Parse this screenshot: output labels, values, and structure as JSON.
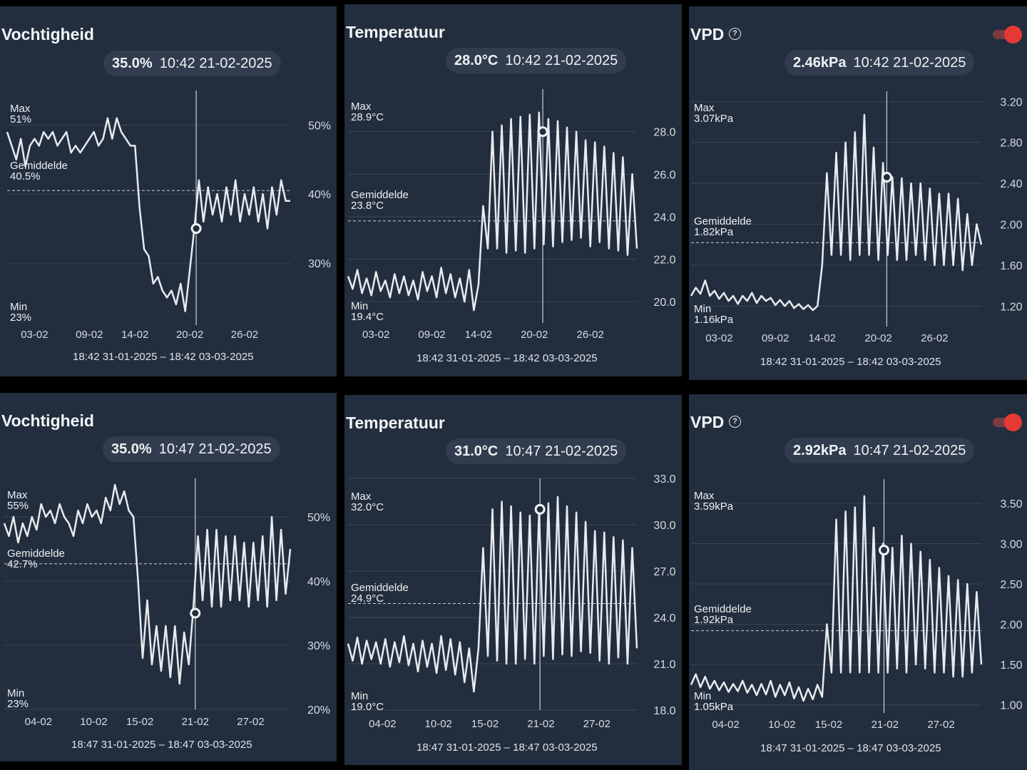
{
  "panels": [
    {
      "title": "Vochtigheid",
      "pill_value": "35.0%",
      "pill_time": "10:42 21-02-2025",
      "range_text": "18:42 31-01-2025 – 18:42 03-03-2025",
      "max_label": "Max",
      "max_value": "51%",
      "avg_label": "Gemiddelde",
      "avg_value": "40.5%",
      "min_label": "Min",
      "min_value": "23%"
    },
    {
      "title": "Temperatuur",
      "pill_value": "28.0°C",
      "pill_time": "10:42 21-02-2025",
      "range_text": "18:42 31-01-2025 – 18:42 03-03-2025",
      "max_label": "Max",
      "max_value": "28.9°C",
      "avg_label": "Gemiddelde",
      "avg_value": "23.8°C",
      "min_label": "Min",
      "min_value": "19.4°C"
    },
    {
      "title": "VPD",
      "help_icon": "help-circle-icon",
      "toggle_on": true,
      "pill_value": "2.46kPa",
      "pill_time": "10:42 21-02-2025",
      "range_text": "18:42 31-01-2025 – 18:42 03-03-2025",
      "max_label": "Max",
      "max_value": "3.07kPa",
      "avg_label": "Gemiddelde",
      "avg_value": "1.82kPa",
      "min_label": "Min",
      "min_value": "1.16kPa"
    },
    {
      "title": "Vochtigheid",
      "pill_value": "35.0%",
      "pill_time": "10:47 21-02-2025",
      "range_text": "18:47 31-01-2025 – 18:47 03-03-2025",
      "max_label": "Max",
      "max_value": "55%",
      "avg_label": "Gemiddelde",
      "avg_value": "42.7%",
      "min_label": "Min",
      "min_value": "23%"
    },
    {
      "title": "Temperatuur",
      "pill_value": "31.0°C",
      "pill_time": "10:47 21-02-2025",
      "range_text": "18:47 31-01-2025 – 18:47 03-03-2025",
      "max_label": "Max",
      "max_value": "32.0°C",
      "avg_label": "Gemiddelde",
      "avg_value": "24.9°C",
      "min_label": "Min",
      "min_value": "19.0°C"
    },
    {
      "title": "VPD",
      "help_icon": "help-circle-icon",
      "toggle_on": true,
      "pill_value": "2.92kPa",
      "pill_time": "10:47 21-02-2025",
      "range_text": "18:47 31-01-2025 – 18:47 03-03-2025",
      "max_label": "Max",
      "max_value": "3.59kPa",
      "avg_label": "Gemiddelde",
      "avg_value": "1.92kPa",
      "min_label": "Min",
      "min_value": "1.05kPa"
    }
  ],
  "colors": {
    "panel_bg": "#222e3e",
    "line": "#e8eaee",
    "grid": "#3a4656",
    "toggle_knob": "#e53935",
    "pill_bg": "#313d4e"
  },
  "chart_data": [
    {
      "type": "line",
      "title": "Vochtigheid",
      "unit": "%",
      "x_ticks": [
        "03-02",
        "09-02",
        "14-02",
        "20-02",
        "26-02"
      ],
      "x_tick_days": [
        3,
        9,
        14,
        20,
        26
      ],
      "y_ticks": [
        "50%",
        "40%",
        "30%"
      ],
      "y_tick_values": [
        50,
        40,
        30
      ],
      "ylim": [
        21,
        55
      ],
      "xlim_days": [
        0,
        31
      ],
      "average": 40.5,
      "cursor_day": 20.7,
      "cursor_value": 35.0,
      "series": [
        {
          "x_days": [
            0,
            0.5,
            1,
            1.5,
            2,
            2.5,
            3,
            3.5,
            4,
            4.5,
            5,
            5.5,
            6,
            6.5,
            7,
            7.5,
            8,
            8.5,
            9,
            9.5,
            10,
            10.5,
            11,
            11.5,
            12,
            12.5,
            13,
            13.5,
            14,
            14.5,
            15,
            15.5,
            16,
            16.5,
            17,
            17.5,
            18,
            18.5,
            19,
            19.5,
            20,
            20.5,
            21,
            21.5,
            22,
            22.5,
            23,
            23.5,
            24,
            24.5,
            25,
            25.5,
            26,
            26.5,
            27,
            27.5,
            28,
            28.5,
            29,
            29.5,
            30,
            30.5,
            31
          ],
          "values": [
            49,
            47,
            45,
            48,
            44,
            47,
            48,
            47,
            49,
            48,
            49,
            47,
            48,
            49,
            46,
            47,
            46,
            47,
            48,
            49,
            47,
            48,
            51,
            48,
            51,
            49,
            48,
            47,
            47,
            38,
            32,
            31,
            27,
            28,
            26,
            25,
            26,
            24,
            27,
            23,
            29,
            35,
            42,
            36,
            41,
            37,
            40,
            36,
            41,
            37,
            42,
            36,
            40,
            37,
            41,
            36,
            40,
            35,
            41,
            37,
            42,
            39,
            39
          ]
        }
      ]
    },
    {
      "type": "line",
      "title": "Temperatuur",
      "unit": "°C",
      "x_ticks": [
        "03-02",
        "09-02",
        "14-02",
        "20-02",
        "26-02"
      ],
      "x_tick_days": [
        3,
        9,
        14,
        20,
        26
      ],
      "y_ticks": [
        "28.0",
        "26.0",
        "24.0",
        "22.0",
        "20.0"
      ],
      "y_tick_values": [
        28,
        26,
        24,
        22,
        20
      ],
      "ylim": [
        19,
        30
      ],
      "xlim_days": [
        0,
        31
      ],
      "average": 23.8,
      "cursor_day": 20.9,
      "cursor_value": 28.0,
      "series": [
        {
          "x_days": [
            0,
            0.5,
            1,
            1.5,
            2,
            2.5,
            3,
            3.5,
            4,
            4.5,
            5,
            5.5,
            6,
            6.5,
            7,
            7.5,
            8,
            8.5,
            9,
            9.5,
            10,
            10.5,
            11,
            11.5,
            12,
            12.5,
            13,
            13.5,
            14,
            14.5,
            15,
            15.5,
            16,
            16.5,
            17,
            17.5,
            18,
            18.5,
            19,
            19.5,
            20,
            20.5,
            21,
            21.5,
            22,
            22.5,
            23,
            23.5,
            24,
            24.5,
            25,
            25.5,
            26,
            26.5,
            27,
            27.5,
            28,
            28.5,
            29,
            29.5,
            30,
            30.5,
            31
          ],
          "values": [
            21.2,
            20.6,
            21.5,
            20.4,
            21.1,
            20.3,
            21.4,
            20.5,
            21.0,
            20.2,
            21.3,
            20.4,
            21.2,
            20.3,
            21.0,
            20.1,
            21.4,
            20.5,
            21.2,
            20.2,
            21.6,
            20.4,
            21.3,
            20.2,
            21.1,
            20.0,
            21.5,
            19.6,
            20.8,
            24.5,
            22.5,
            28.0,
            22.5,
            28.3,
            22.3,
            28.6,
            22.4,
            28.7,
            22.3,
            28.8,
            22.5,
            28.9,
            22.7,
            28.6,
            22.6,
            28.5,
            22.8,
            28.2,
            22.9,
            28.0,
            23.0,
            27.6,
            22.6,
            27.5,
            22.8,
            27.3,
            22.5,
            27.0,
            22.4,
            26.8,
            22.2,
            26.0,
            22.5
          ]
        }
      ]
    },
    {
      "type": "line",
      "title": "VPD",
      "unit": "kPa",
      "x_ticks": [
        "03-02",
        "09-02",
        "14-02",
        "20-02",
        "26-02"
      ],
      "x_tick_days": [
        3,
        9,
        14,
        20,
        26
      ],
      "y_ticks": [
        "3.20",
        "2.80",
        "2.40",
        "2.00",
        "1.60",
        "1.20"
      ],
      "y_tick_values": [
        3.2,
        2.8,
        2.4,
        2.0,
        1.6,
        1.2
      ],
      "ylim": [
        1.0,
        3.3
      ],
      "xlim_days": [
        0,
        31
      ],
      "average": 1.82,
      "cursor_day": 20.9,
      "cursor_value": 2.46,
      "series": [
        {
          "x_days": [
            0,
            0.5,
            1,
            1.5,
            2,
            2.5,
            3,
            3.5,
            4,
            4.5,
            5,
            5.5,
            6,
            6.5,
            7,
            7.5,
            8,
            8.5,
            9,
            9.5,
            10,
            10.5,
            11,
            11.5,
            12,
            12.5,
            13,
            13.5,
            14,
            14.5,
            15,
            15.5,
            16,
            16.5,
            17,
            17.5,
            18,
            18.5,
            19,
            19.5,
            20,
            20.5,
            21,
            21.5,
            22,
            22.5,
            23,
            23.5,
            24,
            24.5,
            25,
            25.5,
            26,
            26.5,
            27,
            27.5,
            28,
            28.5,
            29,
            29.5,
            30,
            30.5,
            31
          ],
          "values": [
            1.3,
            1.38,
            1.32,
            1.45,
            1.3,
            1.35,
            1.27,
            1.33,
            1.25,
            1.3,
            1.22,
            1.3,
            1.25,
            1.33,
            1.23,
            1.3,
            1.25,
            1.28,
            1.21,
            1.26,
            1.2,
            1.25,
            1.18,
            1.22,
            1.17,
            1.21,
            1.16,
            1.2,
            1.6,
            2.5,
            1.7,
            2.7,
            1.7,
            2.8,
            1.65,
            2.9,
            1.7,
            3.07,
            1.7,
            2.75,
            1.65,
            2.6,
            1.7,
            2.46,
            1.65,
            2.45,
            1.65,
            2.4,
            1.7,
            2.4,
            1.65,
            2.35,
            1.6,
            2.3,
            1.6,
            2.3,
            1.6,
            2.25,
            1.55,
            2.1,
            1.6,
            2.0,
            1.8
          ]
        }
      ]
    },
    {
      "type": "line",
      "title": "Vochtigheid",
      "unit": "%",
      "x_ticks": [
        "04-02",
        "10-02",
        "15-02",
        "21-02",
        "27-02"
      ],
      "x_tick_days": [
        4,
        10,
        15,
        21,
        27
      ],
      "y_ticks": [
        "50%",
        "40%",
        "30%",
        "20%"
      ],
      "y_tick_values": [
        50,
        40,
        30,
        20
      ],
      "ylim": [
        20,
        56
      ],
      "xlim_days": [
        0.3,
        31.3
      ],
      "average": 42.7,
      "cursor_day": 21.0,
      "cursor_value": 35.0,
      "series": [
        {
          "x_days": [
            0.3,
            0.8,
            1.3,
            1.8,
            2.3,
            2.8,
            3.3,
            3.8,
            4.3,
            4.8,
            5.3,
            5.8,
            6.3,
            6.8,
            7.3,
            7.8,
            8.3,
            8.8,
            9.3,
            9.8,
            10.3,
            10.8,
            11.3,
            11.8,
            12.3,
            12.8,
            13.3,
            13.8,
            14.3,
            14.8,
            15.3,
            15.8,
            16.3,
            16.8,
            17.3,
            17.8,
            18.3,
            18.8,
            19.3,
            19.8,
            20.3,
            20.8,
            21.3,
            21.8,
            22.3,
            22.8,
            23.3,
            23.8,
            24.3,
            24.8,
            25.3,
            25.8,
            26.3,
            26.8,
            27.3,
            27.8,
            28.3,
            28.8,
            29.3,
            29.8,
            30.3,
            30.8,
            31.3
          ],
          "values": [
            49,
            47,
            50,
            46,
            49,
            47,
            50,
            48,
            52,
            50,
            51,
            49,
            52,
            50,
            49,
            47,
            51,
            49,
            52,
            50,
            51,
            49,
            53,
            51,
            55,
            52,
            54,
            51,
            50,
            40,
            28,
            37,
            27,
            33,
            26,
            33,
            25,
            33,
            24,
            32,
            27,
            36,
            47,
            37,
            48,
            36,
            48,
            36,
            47,
            37,
            47,
            37,
            46,
            36,
            46,
            37,
            47,
            36,
            50,
            37,
            48,
            38,
            45
          ]
        }
      ]
    },
    {
      "type": "line",
      "title": "Temperatuur",
      "unit": "°C",
      "x_ticks": [
        "04-02",
        "10-02",
        "15-02",
        "21-02",
        "27-02"
      ],
      "x_tick_days": [
        4,
        10,
        15,
        21,
        27
      ],
      "y_ticks": [
        "33.0",
        "30.0",
        "27.0",
        "24.0",
        "21.0",
        "18.0"
      ],
      "y_tick_values": [
        33,
        30,
        27,
        24,
        21,
        18
      ],
      "ylim": [
        18,
        33
      ],
      "xlim_days": [
        0.3,
        31.3
      ],
      "average": 24.9,
      "cursor_day": 20.9,
      "cursor_value": 31.0,
      "series": [
        {
          "x_days": [
            0.3,
            0.8,
            1.3,
            1.8,
            2.3,
            2.8,
            3.3,
            3.8,
            4.3,
            4.8,
            5.3,
            5.8,
            6.3,
            6.8,
            7.3,
            7.8,
            8.3,
            8.8,
            9.3,
            9.8,
            10.3,
            10.8,
            11.3,
            11.8,
            12.3,
            12.8,
            13.3,
            13.8,
            14.3,
            14.8,
            15.3,
            15.8,
            16.3,
            16.8,
            17.3,
            17.8,
            18.3,
            18.8,
            19.3,
            19.8,
            20.3,
            20.8,
            21.3,
            21.8,
            22.3,
            22.8,
            23.3,
            23.8,
            24.3,
            24.8,
            25.3,
            25.8,
            26.3,
            26.8,
            27.3,
            27.8,
            28.3,
            28.8,
            29.3,
            29.8,
            30.3,
            30.8,
            31.3
          ],
          "values": [
            22.3,
            21.2,
            22.7,
            21.0,
            22.5,
            21.3,
            22.4,
            21.0,
            22.6,
            20.8,
            22.4,
            21.1,
            22.8,
            20.9,
            22.3,
            20.5,
            22.5,
            20.8,
            22.3,
            20.4,
            22.8,
            20.6,
            22.6,
            20.3,
            22.4,
            19.8,
            22.0,
            19.2,
            22.0,
            28.5,
            21.5,
            31.0,
            21.2,
            31.5,
            21.0,
            31.2,
            21.0,
            30.8,
            21.3,
            30.6,
            21.0,
            30.9,
            21.5,
            31.4,
            21.3,
            31.8,
            21.6,
            31.2,
            21.5,
            30.8,
            21.8,
            30.2,
            21.7,
            29.6,
            21.2,
            29.5,
            21.0,
            29.2,
            21.4,
            29.0,
            21.0,
            28.5,
            22.0
          ]
        }
      ]
    },
    {
      "type": "line",
      "title": "VPD",
      "unit": "kPa",
      "x_ticks": [
        "04-02",
        "10-02",
        "15-02",
        "21-02",
        "27-02"
      ],
      "x_tick_days": [
        4,
        10,
        15,
        21,
        27
      ],
      "y_ticks": [
        "3.50",
        "3.00",
        "2.50",
        "2.00",
        "1.50",
        "1.00"
      ],
      "y_tick_values": [
        3.5,
        3.0,
        2.5,
        2.0,
        1.5,
        1.0
      ],
      "ylim": [
        0.9,
        3.8
      ],
      "xlim_days": [
        0.3,
        31.3
      ],
      "average": 1.92,
      "cursor_day": 20.9,
      "cursor_value": 2.92,
      "series": [
        {
          "x_days": [
            0.3,
            0.8,
            1.3,
            1.8,
            2.3,
            2.8,
            3.3,
            3.8,
            4.3,
            4.8,
            5.3,
            5.8,
            6.3,
            6.8,
            7.3,
            7.8,
            8.3,
            8.8,
            9.3,
            9.8,
            10.3,
            10.8,
            11.3,
            11.8,
            12.3,
            12.8,
            13.3,
            13.8,
            14.3,
            14.8,
            15.3,
            15.8,
            16.3,
            16.8,
            17.3,
            17.8,
            18.3,
            18.8,
            19.3,
            19.8,
            20.3,
            20.8,
            21.3,
            21.8,
            22.3,
            22.8,
            23.3,
            23.8,
            24.3,
            24.8,
            25.3,
            25.8,
            26.3,
            26.8,
            27.3,
            27.8,
            28.3,
            28.8,
            29.3,
            29.8,
            30.3,
            30.8,
            31.3
          ],
          "values": [
            1.25,
            1.38,
            1.22,
            1.35,
            1.2,
            1.3,
            1.18,
            1.28,
            1.16,
            1.26,
            1.17,
            1.3,
            1.15,
            1.25,
            1.12,
            1.26,
            1.13,
            1.3,
            1.1,
            1.25,
            1.12,
            1.28,
            1.08,
            1.22,
            1.05,
            1.2,
            1.07,
            1.25,
            1.1,
            2.0,
            1.4,
            3.3,
            1.4,
            3.4,
            1.4,
            3.45,
            1.4,
            3.59,
            1.4,
            3.2,
            1.4,
            3.0,
            1.4,
            2.95,
            1.45,
            3.1,
            1.4,
            3.0,
            1.5,
            2.9,
            1.45,
            2.8,
            1.4,
            2.7,
            1.4,
            2.6,
            1.35,
            2.55,
            1.35,
            2.5,
            1.4,
            2.4,
            1.5
          ]
        }
      ]
    }
  ]
}
